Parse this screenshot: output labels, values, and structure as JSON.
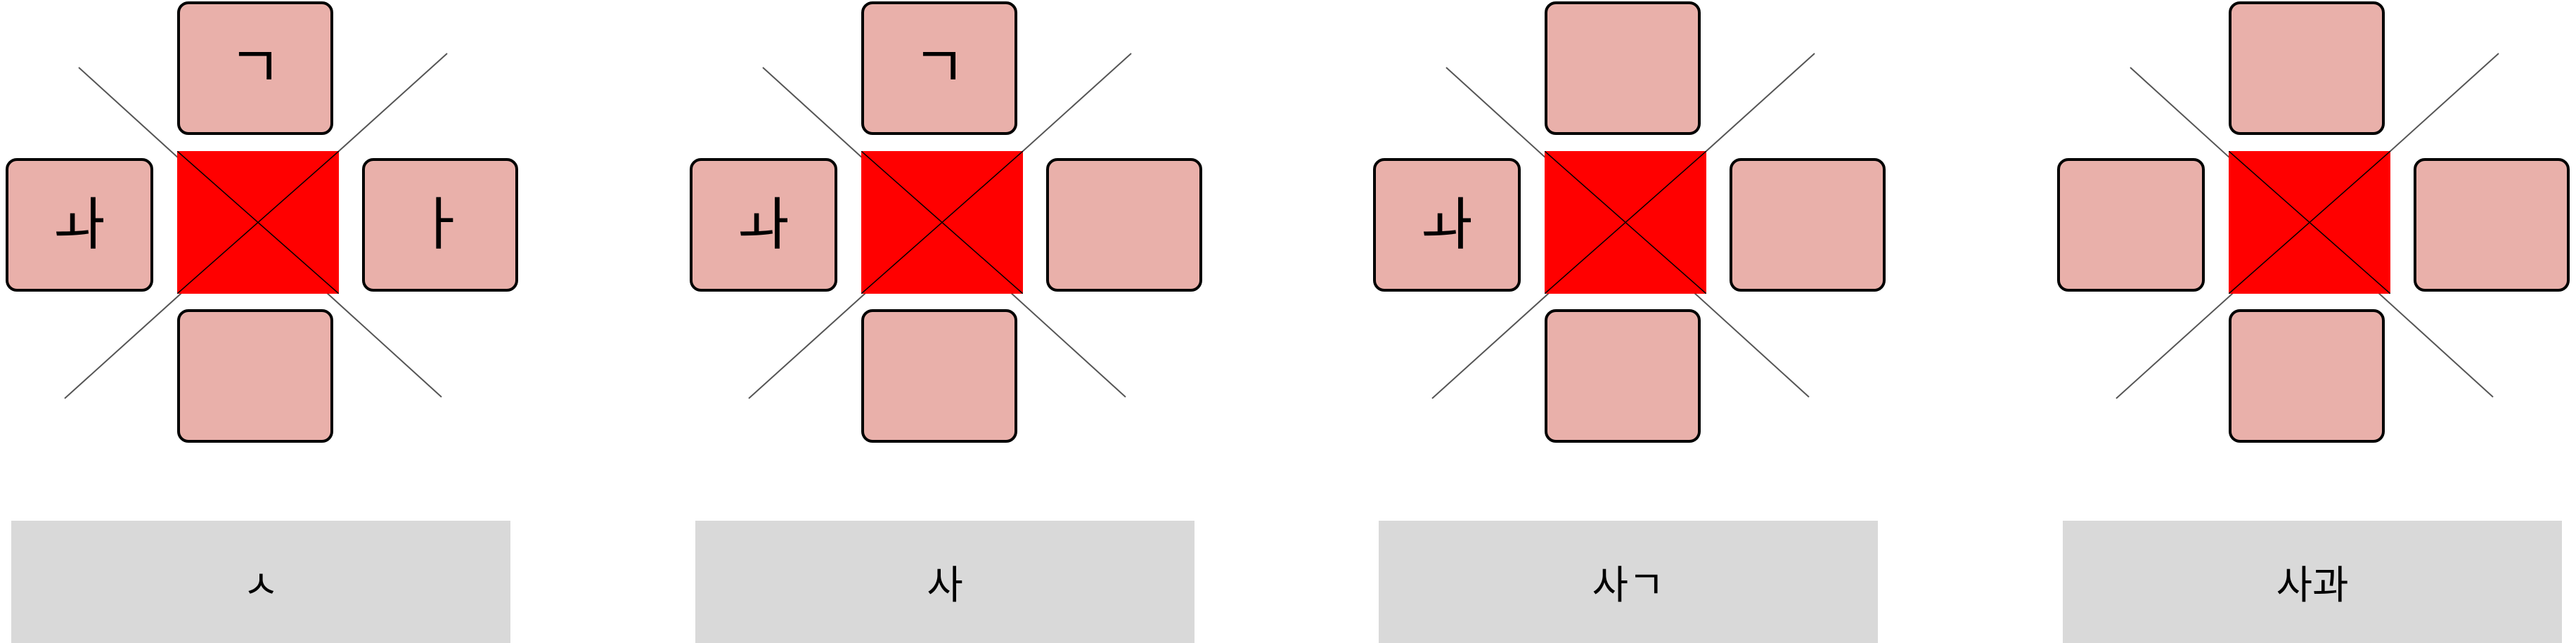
{
  "panels": [
    {
      "keys": {
        "top": "ㄱ",
        "left": "ㅘ",
        "right": "ㅏ",
        "bottom": ""
      },
      "result": "ㅅ"
    },
    {
      "keys": {
        "top": "ㄱ",
        "left": "ㅘ",
        "right": "",
        "bottom": ""
      },
      "result": "사"
    },
    {
      "keys": {
        "top": "",
        "left": "ㅘ",
        "right": "",
        "bottom": ""
      },
      "result": "사ㄱ"
    },
    {
      "keys": {
        "top": "",
        "left": "",
        "right": "",
        "bottom": ""
      },
      "result": "사과"
    }
  ],
  "colors": {
    "center": "#ff0000",
    "key_fill": "#e9b0aa",
    "result_bg": "#d9d9d9"
  }
}
